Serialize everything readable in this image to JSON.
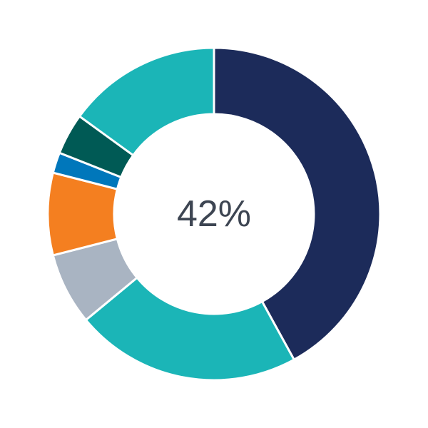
{
  "chart_data": {
    "type": "pie",
    "variant": "donut",
    "center_label": "42%",
    "values": [
      42,
      22,
      7,
      8,
      2,
      4,
      15
    ],
    "colors": [
      "#1c2b5a",
      "#1bb5b7",
      "#a9b4c2",
      "#f47f20",
      "#0077bb",
      "#005a55",
      "#1bb5b7"
    ],
    "legend": "none"
  }
}
